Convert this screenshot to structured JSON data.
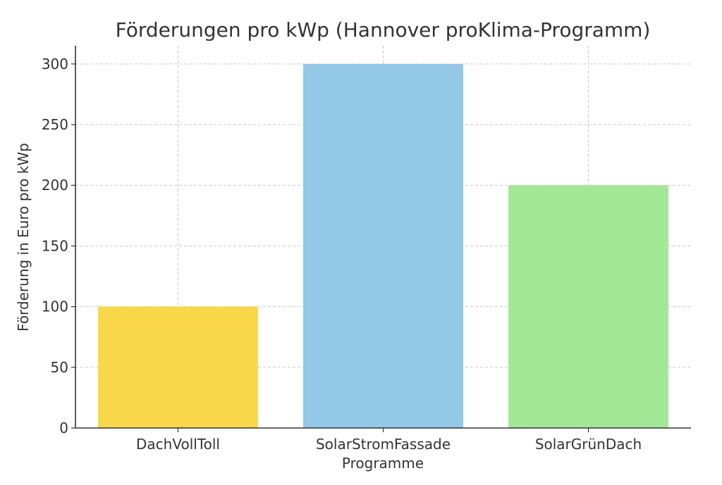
{
  "chart_data": {
    "type": "bar",
    "title": "Förderungen pro kWp (Hannover proKlima-Programm)",
    "xlabel": "Programme",
    "ylabel": "Förderung in Euro pro kWp",
    "categories": [
      "DachVollToll",
      "SolarStromFassade",
      "SolarGrünDach"
    ],
    "values": [
      100,
      300,
      200
    ],
    "colors": [
      "#f8d84a",
      "#93c8e6",
      "#a3e896"
    ],
    "ylim": [
      0,
      315
    ],
    "yticks": [
      0,
      50,
      100,
      150,
      200,
      250,
      300
    ],
    "grid": true
  }
}
